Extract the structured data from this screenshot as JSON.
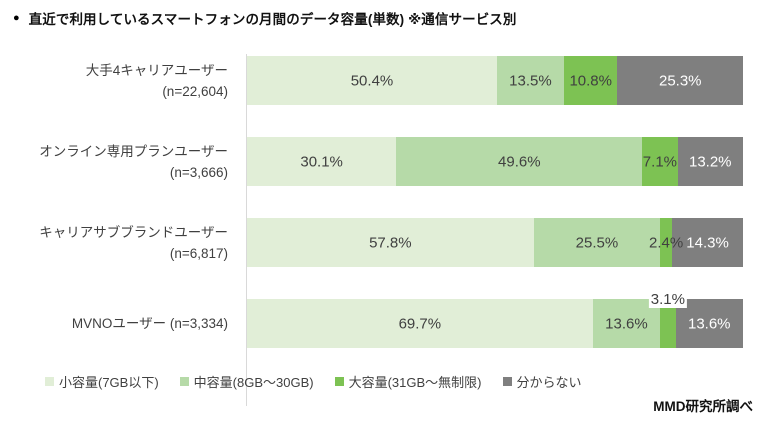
{
  "header": {
    "bullet": "●",
    "title": "直近で利用しているスマートフォンの月間のデータ容量(単数) ※通信サービス別"
  },
  "colors": {
    "small_capacity": "#e1eed7",
    "medium_capacity": "#b6daa8",
    "large_capacity": "#7dc253",
    "unknown": "#7f7f7f",
    "value_label_dark": "#404040",
    "value_label_light": "#ffffff",
    "axis_line": "#d9d9d9"
  },
  "chart_data": {
    "type": "bar",
    "variant": "horizontal-stacked",
    "title": "直近で利用しているスマートフォンの月間のデータ容量(単数) ※通信サービス別",
    "unit": "%",
    "xlim": [
      0,
      100
    ],
    "grid": false,
    "legend_position": "bottom",
    "series_names": [
      "小容量(7GB以下)",
      "中容量(8GB〜30GB)",
      "大容量(31GB〜無制限)",
      "分からない"
    ],
    "rows": [
      {
        "category_lines": [
          "大手4キャリアユーザー",
          "(n=22,604)"
        ],
        "values": [
          50.4,
          13.5,
          10.8,
          25.3
        ],
        "raised_value_index": null
      },
      {
        "category_lines": [
          "オンライン専用プランユーザー",
          "(n=3,666)"
        ],
        "values": [
          30.1,
          49.6,
          7.1,
          13.2
        ],
        "raised_value_index": null
      },
      {
        "category_lines": [
          "キャリアサブブランドユーザー",
          "(n=6,817)"
        ],
        "values": [
          57.8,
          25.5,
          2.4,
          14.3
        ],
        "raised_value_index": null
      },
      {
        "category_lines": [
          "MVNOユーザー (n=3,334)"
        ],
        "values": [
          69.7,
          13.6,
          3.1,
          13.6
        ],
        "raised_value_index": 2
      }
    ]
  },
  "legend": {
    "items": [
      {
        "label": "小容量(7GB以下)",
        "color": "#e1eed7"
      },
      {
        "label": "中容量(8GB〜30GB)",
        "color": "#b6daa8"
      },
      {
        "label": "大容量(31GB〜無制限)",
        "color": "#7dc253"
      },
      {
        "label": "分からない",
        "color": "#7f7f7f"
      }
    ]
  },
  "source": "MMD研究所調べ"
}
